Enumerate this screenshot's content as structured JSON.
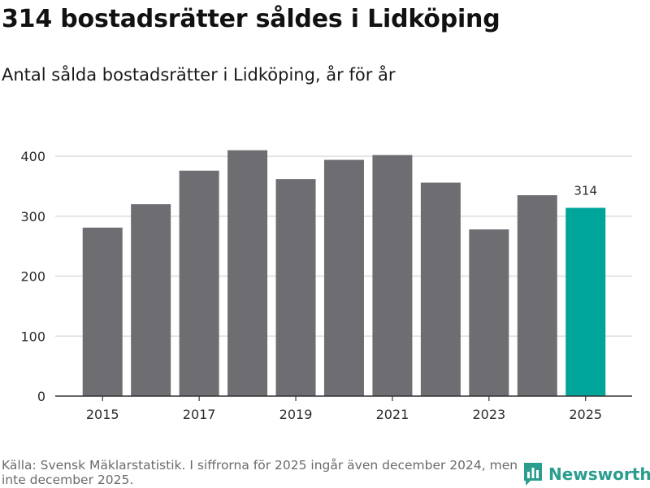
{
  "header": {
    "title": "314 bostadsrätter såldes i Lidköping",
    "subtitle": "Antal sålda bostadsrätter i Lidköping, år för år"
  },
  "chart_data": {
    "type": "bar",
    "title": "314 bostadsrätter såldes i Lidköping",
    "subtitle": "Antal sålda bostadsrätter i Lidköping, år för år",
    "categories": [
      "2015",
      "2016",
      "2017",
      "2018",
      "2019",
      "2020",
      "2021",
      "2022",
      "2023",
      "2024",
      "2025"
    ],
    "values": [
      281,
      320,
      376,
      410,
      362,
      394,
      402,
      356,
      278,
      335,
      314
    ],
    "x_tick_labels": [
      "2015",
      "",
      "2017",
      "",
      "2019",
      "",
      "2021",
      "",
      "2023",
      "",
      "2025"
    ],
    "y_ticks": [
      0,
      100,
      200,
      300,
      400
    ],
    "ylim": [
      0,
      430
    ],
    "xlabel": "",
    "ylabel": "",
    "grid": true,
    "highlight_index": 10,
    "data_labels": [
      {
        "index": 10,
        "text": "314"
      }
    ],
    "colors": {
      "bar": "#6e6d72",
      "highlight": "#00a59a",
      "grid": "#dddddd",
      "axis": "#333333"
    }
  },
  "footer": {
    "source": "Källa: Svensk Mäklarstatistik. I siffrorna för 2025 ingår även december 2024, men inte december 2025.",
    "logo_text": "Newsworthy",
    "logo_icon": "bar-chart-speech-bubble-icon",
    "logo_color": "#2a9d8f"
  }
}
